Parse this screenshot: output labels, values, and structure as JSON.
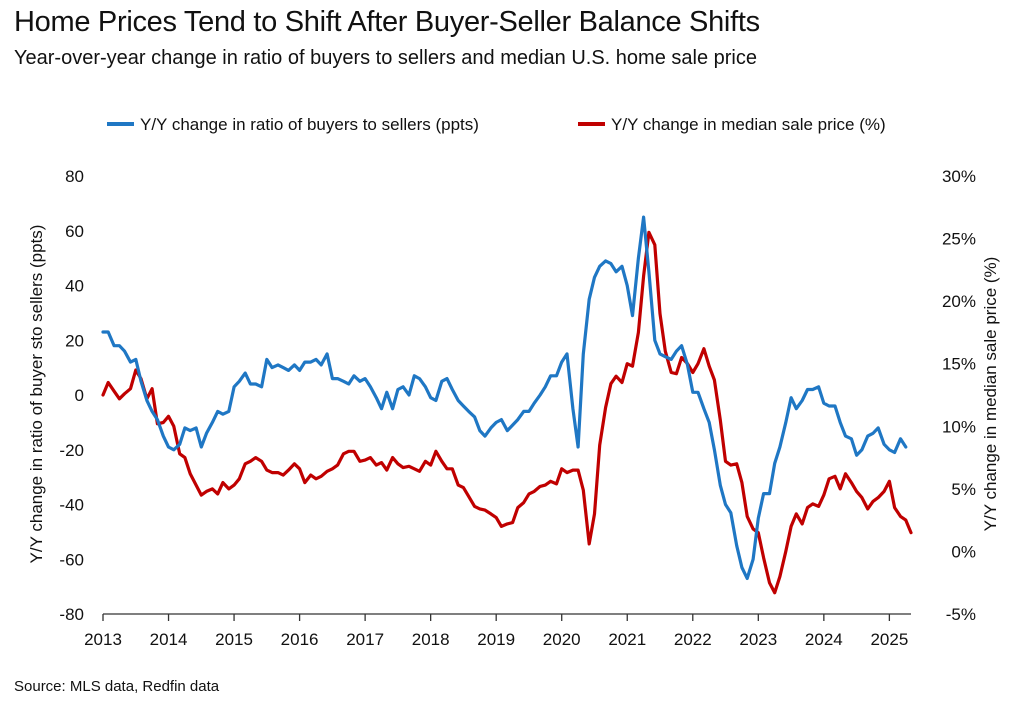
{
  "title": "Home Prices Tend to Shift After Buyer-Seller Balance Shifts",
  "subtitle": "Year-over-year change in ratio of buyers to sellers and median U.S. home sale price",
  "source": "Source: MLS data, Redfin data",
  "colors": {
    "blue": "#1f77c4",
    "red": "#c00000",
    "axis": "#333333"
  },
  "chart_data": {
    "type": "line",
    "grid": false,
    "legend_position": "top",
    "x_ticks": [
      "2013",
      "2014",
      "2015",
      "2016",
      "2017",
      "2018",
      "2019",
      "2020",
      "2021",
      "2022",
      "2023",
      "2024",
      "2025"
    ],
    "xlim": [
      2013.0,
      2025.33
    ],
    "y_left": {
      "label": "Y/Y change in ratio of buyer sto sellers (ppts)",
      "range": [
        -80,
        80
      ],
      "ticks": [
        "80",
        "60",
        "40",
        "20",
        "0",
        "-20",
        "-40",
        "-60",
        "-80"
      ]
    },
    "y_right": {
      "label": "Y/Y change in median sale price (%)",
      "range": [
        -5,
        30
      ],
      "ticks": [
        "30%",
        "25%",
        "20%",
        "15%",
        "10%",
        "5%",
        "0%",
        "-5%"
      ]
    },
    "series": [
      {
        "name": "Y/Y change in ratio of buyers to sellers (ppts)",
        "axis": "left",
        "color": "#1f77c4",
        "points": [
          [
            2013.0,
            23
          ],
          [
            2013.08,
            23
          ],
          [
            2013.17,
            18
          ],
          [
            2013.25,
            18
          ],
          [
            2013.33,
            16
          ],
          [
            2013.42,
            12
          ],
          [
            2013.5,
            13
          ],
          [
            2013.58,
            5
          ],
          [
            2013.67,
            -2
          ],
          [
            2013.75,
            -6
          ],
          [
            2013.83,
            -9
          ],
          [
            2013.92,
            -15
          ],
          [
            2014.0,
            -19
          ],
          [
            2014.08,
            -20
          ],
          [
            2014.17,
            -18
          ],
          [
            2014.25,
            -12
          ],
          [
            2014.33,
            -13
          ],
          [
            2014.42,
            -12
          ],
          [
            2014.5,
            -19
          ],
          [
            2014.58,
            -14
          ],
          [
            2014.67,
            -10
          ],
          [
            2014.75,
            -6
          ],
          [
            2014.83,
            -7
          ],
          [
            2014.92,
            -6
          ],
          [
            2015.0,
            3
          ],
          [
            2015.08,
            5
          ],
          [
            2015.17,
            8
          ],
          [
            2015.25,
            4
          ],
          [
            2015.33,
            4
          ],
          [
            2015.42,
            3
          ],
          [
            2015.5,
            13
          ],
          [
            2015.58,
            10
          ],
          [
            2015.67,
            11
          ],
          [
            2015.75,
            10
          ],
          [
            2015.83,
            9
          ],
          [
            2015.92,
            11
          ],
          [
            2016.0,
            9
          ],
          [
            2016.08,
            12
          ],
          [
            2016.17,
            12
          ],
          [
            2016.25,
            13
          ],
          [
            2016.33,
            11
          ],
          [
            2016.42,
            15
          ],
          [
            2016.5,
            6
          ],
          [
            2016.58,
            6
          ],
          [
            2016.67,
            5
          ],
          [
            2016.75,
            4
          ],
          [
            2016.83,
            7
          ],
          [
            2016.92,
            5
          ],
          [
            2017.0,
            6
          ],
          [
            2017.08,
            3
          ],
          [
            2017.17,
            -1
          ],
          [
            2017.25,
            -5
          ],
          [
            2017.33,
            1
          ],
          [
            2017.42,
            -5
          ],
          [
            2017.5,
            2
          ],
          [
            2017.58,
            3
          ],
          [
            2017.67,
            0
          ],
          [
            2017.75,
            7
          ],
          [
            2017.83,
            6
          ],
          [
            2017.92,
            3
          ],
          [
            2018.0,
            -1
          ],
          [
            2018.08,
            -2
          ],
          [
            2018.17,
            5
          ],
          [
            2018.25,
            6
          ],
          [
            2018.33,
            2
          ],
          [
            2018.42,
            -2
          ],
          [
            2018.5,
            -4
          ],
          [
            2018.58,
            -6
          ],
          [
            2018.67,
            -8
          ],
          [
            2018.75,
            -13
          ],
          [
            2018.83,
            -15
          ],
          [
            2018.92,
            -12
          ],
          [
            2019.0,
            -10
          ],
          [
            2019.08,
            -9
          ],
          [
            2019.17,
            -13
          ],
          [
            2019.25,
            -11
          ],
          [
            2019.33,
            -9
          ],
          [
            2019.42,
            -6
          ],
          [
            2019.5,
            -6
          ],
          [
            2019.58,
            -3
          ],
          [
            2019.67,
            0
          ],
          [
            2019.75,
            3
          ],
          [
            2019.83,
            7
          ],
          [
            2019.92,
            7
          ],
          [
            2020.0,
            12
          ],
          [
            2020.08,
            15
          ],
          [
            2020.17,
            -5
          ],
          [
            2020.25,
            -19
          ],
          [
            2020.33,
            15
          ],
          [
            2020.42,
            35
          ],
          [
            2020.5,
            43
          ],
          [
            2020.58,
            47
          ],
          [
            2020.67,
            49
          ],
          [
            2020.75,
            48
          ],
          [
            2020.83,
            45
          ],
          [
            2020.92,
            47
          ],
          [
            2021.0,
            40
          ],
          [
            2021.08,
            29
          ],
          [
            2021.17,
            50
          ],
          [
            2021.25,
            65
          ],
          [
            2021.33,
            45
          ],
          [
            2021.42,
            20
          ],
          [
            2021.5,
            15
          ],
          [
            2021.58,
            14
          ],
          [
            2021.67,
            13
          ],
          [
            2021.75,
            16
          ],
          [
            2021.83,
            18
          ],
          [
            2021.92,
            11
          ],
          [
            2022.0,
            1
          ],
          [
            2022.08,
            1
          ],
          [
            2022.17,
            -5
          ],
          [
            2022.25,
            -10
          ],
          [
            2022.33,
            -20
          ],
          [
            2022.42,
            -33
          ],
          [
            2022.5,
            -40
          ],
          [
            2022.58,
            -43
          ],
          [
            2022.67,
            -55
          ],
          [
            2022.75,
            -63
          ],
          [
            2022.83,
            -67
          ],
          [
            2022.92,
            -60
          ],
          [
            2023.0,
            -45
          ],
          [
            2023.08,
            -36
          ],
          [
            2023.17,
            -36
          ],
          [
            2023.25,
            -25
          ],
          [
            2023.33,
            -19
          ],
          [
            2023.42,
            -10
          ],
          [
            2023.5,
            -1
          ],
          [
            2023.58,
            -5
          ],
          [
            2023.67,
            -2
          ],
          [
            2023.75,
            2
          ],
          [
            2023.83,
            2
          ],
          [
            2023.92,
            3
          ],
          [
            2024.0,
            -3
          ],
          [
            2024.08,
            -4
          ],
          [
            2024.17,
            -4
          ],
          [
            2024.25,
            -10
          ],
          [
            2024.33,
            -15
          ],
          [
            2024.42,
            -16
          ],
          [
            2024.5,
            -22
          ],
          [
            2024.58,
            -20
          ],
          [
            2024.67,
            -15
          ],
          [
            2024.75,
            -14
          ],
          [
            2024.83,
            -12
          ],
          [
            2024.92,
            -18
          ],
          [
            2025.0,
            -20
          ],
          [
            2025.08,
            -21
          ],
          [
            2025.17,
            -16
          ],
          [
            2025.25,
            -19
          ]
        ]
      },
      {
        "name": "Y/Y change in median sale price (%)",
        "axis": "right",
        "color": "#c00000",
        "points": [
          [
            2013.0,
            12.5
          ],
          [
            2013.08,
            13.5
          ],
          [
            2013.17,
            12.8
          ],
          [
            2013.25,
            12.2
          ],
          [
            2013.33,
            12.6
          ],
          [
            2013.42,
            13.0
          ],
          [
            2013.5,
            14.5
          ],
          [
            2013.58,
            13.8
          ],
          [
            2013.67,
            12.2
          ],
          [
            2013.75,
            13.0
          ],
          [
            2013.83,
            10.2
          ],
          [
            2013.92,
            10.3
          ],
          [
            2014.0,
            10.8
          ],
          [
            2014.08,
            10.0
          ],
          [
            2014.17,
            7.8
          ],
          [
            2014.25,
            7.5
          ],
          [
            2014.33,
            6.2
          ],
          [
            2014.42,
            5.3
          ],
          [
            2014.5,
            4.5
          ],
          [
            2014.58,
            4.8
          ],
          [
            2014.67,
            5.0
          ],
          [
            2014.75,
            4.6
          ],
          [
            2014.83,
            5.5
          ],
          [
            2014.92,
            5.0
          ],
          [
            2015.0,
            5.3
          ],
          [
            2015.08,
            5.8
          ],
          [
            2015.17,
            7.0
          ],
          [
            2015.25,
            7.2
          ],
          [
            2015.33,
            7.5
          ],
          [
            2015.42,
            7.2
          ],
          [
            2015.5,
            6.5
          ],
          [
            2015.58,
            6.3
          ],
          [
            2015.67,
            6.3
          ],
          [
            2015.75,
            6.1
          ],
          [
            2015.83,
            6.5
          ],
          [
            2015.92,
            7.0
          ],
          [
            2016.0,
            6.6
          ],
          [
            2016.08,
            5.5
          ],
          [
            2016.17,
            6.1
          ],
          [
            2016.25,
            5.8
          ],
          [
            2016.33,
            6.0
          ],
          [
            2016.42,
            6.4
          ],
          [
            2016.5,
            6.6
          ],
          [
            2016.58,
            6.9
          ],
          [
            2016.67,
            7.8
          ],
          [
            2016.75,
            8.0
          ],
          [
            2016.83,
            8.0
          ],
          [
            2016.92,
            7.2
          ],
          [
            2017.0,
            7.3
          ],
          [
            2017.08,
            7.5
          ],
          [
            2017.17,
            6.9
          ],
          [
            2017.25,
            7.1
          ],
          [
            2017.33,
            6.5
          ],
          [
            2017.42,
            7.5
          ],
          [
            2017.5,
            7.0
          ],
          [
            2017.58,
            6.7
          ],
          [
            2017.67,
            6.8
          ],
          [
            2017.75,
            6.6
          ],
          [
            2017.83,
            6.4
          ],
          [
            2017.92,
            7.2
          ],
          [
            2018.0,
            6.9
          ],
          [
            2018.08,
            8.0
          ],
          [
            2018.17,
            7.2
          ],
          [
            2018.25,
            6.6
          ],
          [
            2018.33,
            6.6
          ],
          [
            2018.42,
            5.3
          ],
          [
            2018.5,
            5.1
          ],
          [
            2018.58,
            4.4
          ],
          [
            2018.67,
            3.6
          ],
          [
            2018.75,
            3.4
          ],
          [
            2018.83,
            3.3
          ],
          [
            2018.92,
            3.0
          ],
          [
            2019.0,
            2.7
          ],
          [
            2019.08,
            2.0
          ],
          [
            2019.17,
            2.2
          ],
          [
            2019.25,
            2.3
          ],
          [
            2019.33,
            3.5
          ],
          [
            2019.42,
            3.9
          ],
          [
            2019.5,
            4.6
          ],
          [
            2019.58,
            4.8
          ],
          [
            2019.67,
            5.2
          ],
          [
            2019.75,
            5.3
          ],
          [
            2019.83,
            5.6
          ],
          [
            2019.92,
            5.4
          ],
          [
            2020.0,
            6.6
          ],
          [
            2020.08,
            6.3
          ],
          [
            2020.17,
            6.5
          ],
          [
            2020.25,
            6.5
          ],
          [
            2020.33,
            4.9
          ],
          [
            2020.42,
            0.6
          ],
          [
            2020.5,
            3.0
          ],
          [
            2020.58,
            8.5
          ],
          [
            2020.67,
            11.5
          ],
          [
            2020.75,
            13.4
          ],
          [
            2020.83,
            14.0
          ],
          [
            2020.92,
            13.5
          ],
          [
            2021.0,
            15.0
          ],
          [
            2021.08,
            14.8
          ],
          [
            2021.17,
            17.5
          ],
          [
            2021.25,
            22.0
          ],
          [
            2021.33,
            25.5
          ],
          [
            2021.42,
            24.5
          ],
          [
            2021.5,
            19.0
          ],
          [
            2021.58,
            16.0
          ],
          [
            2021.67,
            14.3
          ],
          [
            2021.75,
            14.2
          ],
          [
            2021.83,
            15.5
          ],
          [
            2021.92,
            15.0
          ],
          [
            2022.0,
            14.3
          ],
          [
            2022.08,
            15.0
          ],
          [
            2022.17,
            16.2
          ],
          [
            2022.25,
            14.8
          ],
          [
            2022.33,
            13.7
          ],
          [
            2022.42,
            10.5
          ],
          [
            2022.5,
            7.2
          ],
          [
            2022.58,
            6.9
          ],
          [
            2022.67,
            7.0
          ],
          [
            2022.75,
            5.5
          ],
          [
            2022.83,
            2.8
          ],
          [
            2022.92,
            1.8
          ],
          [
            2023.0,
            1.5
          ],
          [
            2023.08,
            -0.5
          ],
          [
            2023.17,
            -2.5
          ],
          [
            2023.25,
            -3.3
          ],
          [
            2023.33,
            -2.0
          ],
          [
            2023.42,
            0.0
          ],
          [
            2023.5,
            2.0
          ],
          [
            2023.58,
            3.0
          ],
          [
            2023.67,
            2.2
          ],
          [
            2023.75,
            3.5
          ],
          [
            2023.83,
            3.8
          ],
          [
            2023.92,
            3.6
          ],
          [
            2024.0,
            4.5
          ],
          [
            2024.08,
            5.8
          ],
          [
            2024.17,
            6.0
          ],
          [
            2024.25,
            5.0
          ],
          [
            2024.33,
            6.2
          ],
          [
            2024.42,
            5.5
          ],
          [
            2024.5,
            4.8
          ],
          [
            2024.58,
            4.3
          ],
          [
            2024.67,
            3.4
          ],
          [
            2024.75,
            4.0
          ],
          [
            2024.83,
            4.3
          ],
          [
            2024.92,
            4.8
          ],
          [
            2025.0,
            5.6
          ],
          [
            2025.08,
            3.5
          ],
          [
            2025.17,
            2.8
          ],
          [
            2025.25,
            2.5
          ],
          [
            2025.33,
            1.5
          ]
        ]
      }
    ]
  }
}
